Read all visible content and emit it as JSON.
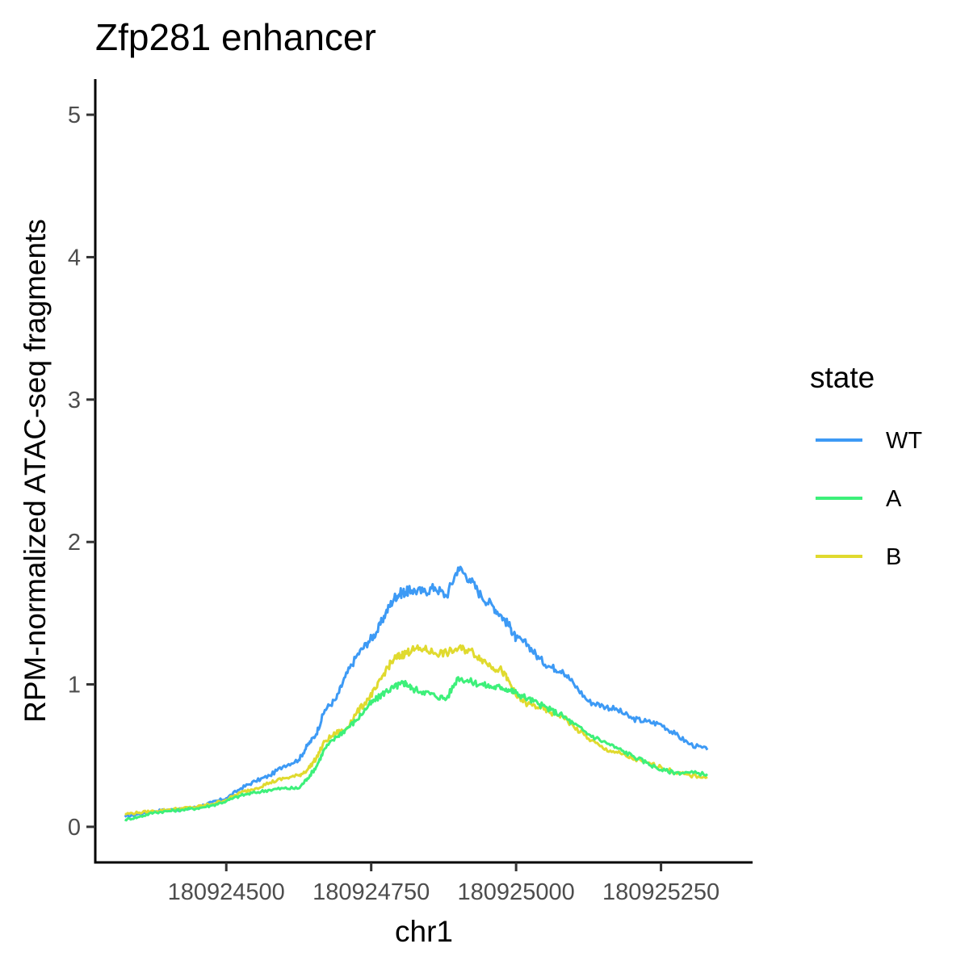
{
  "chart_data": {
    "type": "line",
    "title": "Zfp281 enhancer",
    "xlabel": "chr1",
    "ylabel": "RPM-normalized ATAC-seq fragments",
    "xlim": [
      180924274,
      180925408
    ],
    "ylim": [
      -0.25,
      5.25
    ],
    "xticks": [
      180924500,
      180924750,
      180925000,
      180925250
    ],
    "xtick_labels": [
      "180924500",
      "180924750",
      "180925000",
      "180925250"
    ],
    "yticks": [
      0,
      1,
      2,
      3,
      4,
      5
    ],
    "ytick_labels": [
      "0",
      "1",
      "2",
      "3",
      "4",
      "5"
    ],
    "grid": false,
    "legend": {
      "title": "state",
      "position": "right"
    },
    "series": [
      {
        "name": "WT",
        "color": "#3d9af5",
        "x": [
          180924325,
          180924350,
          180924375,
          180924400,
          180924425,
          180924450,
          180924475,
          180924500,
          180924525,
          180924550,
          180924575,
          180924600,
          180924625,
          180924640,
          180924655,
          180924670,
          180924690,
          180924705,
          180924725,
          180924745,
          180924760,
          180924775,
          180924790,
          180924800,
          180924810,
          180924820,
          180924840,
          180924860,
          180924880,
          180924900,
          180924920,
          180924940,
          180924960,
          180924975,
          180924990,
          180925000,
          180925020,
          180925040,
          180925060,
          180925080,
          180925100,
          180925125,
          180925150,
          180925175,
          180925200,
          180925225,
          180925250,
          180925275,
          180925300,
          180925330
        ],
        "y": [
          0.07,
          0.09,
          0.11,
          0.12,
          0.12,
          0.14,
          0.17,
          0.2,
          0.27,
          0.32,
          0.36,
          0.43,
          0.47,
          0.57,
          0.65,
          0.82,
          0.9,
          1.05,
          1.2,
          1.3,
          1.37,
          1.5,
          1.61,
          1.64,
          1.65,
          1.66,
          1.65,
          1.68,
          1.62,
          1.82,
          1.74,
          1.62,
          1.55,
          1.48,
          1.4,
          1.32,
          1.28,
          1.18,
          1.12,
          1.1,
          1.0,
          0.88,
          0.85,
          0.82,
          0.76,
          0.74,
          0.72,
          0.65,
          0.58,
          0.54
        ]
      },
      {
        "name": "A",
        "color": "#3df07a",
        "x": [
          180924325,
          180924350,
          180924375,
          180924400,
          180924425,
          180924450,
          180924475,
          180924500,
          180924525,
          180924550,
          180924575,
          180924600,
          180924625,
          180924640,
          180924655,
          180924670,
          180924690,
          180924705,
          180924725,
          180924745,
          180924760,
          180924775,
          180924790,
          180924800,
          180924810,
          180924820,
          180924840,
          180924860,
          180924880,
          180924900,
          180924920,
          180924940,
          180924960,
          180924975,
          180924990,
          180925000,
          180925020,
          180925040,
          180925060,
          180925080,
          180925100,
          180925125,
          180925150,
          180925175,
          180925200,
          180925225,
          180925250,
          180925275,
          180925300,
          180925330
        ],
        "y": [
          0.05,
          0.07,
          0.1,
          0.11,
          0.12,
          0.13,
          0.15,
          0.18,
          0.22,
          0.24,
          0.26,
          0.27,
          0.27,
          0.34,
          0.42,
          0.55,
          0.63,
          0.68,
          0.75,
          0.85,
          0.9,
          0.95,
          0.98,
          1.0,
          1.01,
          0.97,
          0.95,
          0.92,
          0.9,
          1.05,
          1.02,
          1.0,
          0.98,
          0.98,
          0.96,
          0.94,
          0.9,
          0.86,
          0.82,
          0.78,
          0.72,
          0.65,
          0.6,
          0.55,
          0.5,
          0.45,
          0.4,
          0.38,
          0.38,
          0.37
        ]
      },
      {
        "name": "B",
        "color": "#e0da2e",
        "x": [
          180924325,
          180924350,
          180924375,
          180924400,
          180924425,
          180924450,
          180924475,
          180924500,
          180924525,
          180924550,
          180924575,
          180924600,
          180924625,
          180924640,
          180924655,
          180924670,
          180924690,
          180924705,
          180924725,
          180924745,
          180924760,
          180924775,
          180924790,
          180924800,
          180924810,
          180924820,
          180924840,
          180924860,
          180924880,
          180924900,
          180924920,
          180924940,
          180924960,
          180924975,
          180924990,
          180925000,
          180925020,
          180925040,
          180925060,
          180925080,
          180925100,
          180925125,
          180925150,
          180925175,
          180925200,
          180925225,
          180925250,
          180925275,
          180925300,
          180925330
        ],
        "y": [
          0.09,
          0.1,
          0.11,
          0.12,
          0.13,
          0.14,
          0.16,
          0.19,
          0.24,
          0.27,
          0.31,
          0.34,
          0.36,
          0.4,
          0.48,
          0.6,
          0.66,
          0.68,
          0.8,
          0.9,
          0.98,
          1.1,
          1.18,
          1.2,
          1.22,
          1.24,
          1.25,
          1.22,
          1.22,
          1.25,
          1.24,
          1.18,
          1.12,
          1.1,
          1.0,
          0.92,
          0.86,
          0.84,
          0.8,
          0.78,
          0.7,
          0.62,
          0.55,
          0.52,
          0.48,
          0.45,
          0.42,
          0.38,
          0.36,
          0.35
        ]
      }
    ]
  }
}
